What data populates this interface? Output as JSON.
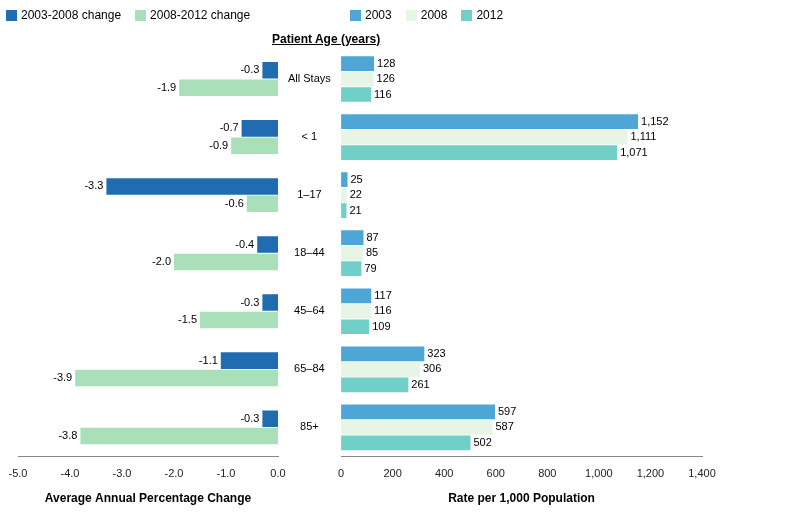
{
  "chart_data": [
    {
      "type": "bar",
      "orientation": "horizontal",
      "ylabel": "Patient Age (years)",
      "xlabel": "Average Annual Percentage Change",
      "categories": [
        "All Stays",
        "< 1",
        "1–17",
        "18–44",
        "45–64",
        "65–84",
        "85+"
      ],
      "series": [
        {
          "name": "2003-2008 change",
          "color": "#1f6cb0",
          "values": [
            -0.3,
            -0.7,
            -3.3,
            -0.4,
            -0.3,
            -1.1,
            -0.3
          ],
          "value_labels": [
            "-0.3",
            "-0.7",
            "-3.3",
            "-0.4",
            "-0.3",
            "-1.1",
            "-0.3"
          ]
        },
        {
          "name": "2008-2012 change",
          "color": "#a9dfb9",
          "values": [
            -1.9,
            -0.9,
            -0.6,
            -2.0,
            -1.5,
            -3.9,
            -3.8
          ],
          "value_labels": [
            "-1.9",
            "-0.9",
            "-0.6",
            "-2.0",
            "-1.5",
            "-3.9",
            "-3.8"
          ]
        }
      ],
      "xlim": [
        -5,
        0
      ],
      "xticks": [
        {
          "value": -5,
          "label": "-5.0"
        },
        {
          "value": -4,
          "label": "-4.0"
        },
        {
          "value": -3,
          "label": "-3.0"
        },
        {
          "value": -2,
          "label": "-2.0"
        },
        {
          "value": -1,
          "label": "-1.0"
        },
        {
          "value": 0,
          "label": "0.0"
        }
      ],
      "grid": false,
      "legend": "top left",
      "data_labels": true
    },
    {
      "type": "bar",
      "orientation": "horizontal",
      "xlabel": "Rate per 1,000 Population",
      "categories": [
        "All Stays",
        "< 1",
        "1–17",
        "18–44",
        "45–64",
        "65–84",
        "85+"
      ],
      "series": [
        {
          "name": "2003",
          "color": "#4da6d6",
          "values": [
            128,
            1152,
            25,
            87,
            117,
            323,
            597
          ],
          "value_labels": [
            "128",
            "1,152",
            "25",
            "87",
            "117",
            "323",
            "597"
          ]
        },
        {
          "name": "2008",
          "color": "#e6f5e6",
          "values": [
            126,
            1111,
            22,
            85,
            116,
            306,
            587
          ],
          "value_labels": [
            "126",
            "1,111",
            "22",
            "85",
            "116",
            "306",
            "587"
          ]
        },
        {
          "name": "2012",
          "color": "#70cfc6",
          "values": [
            116,
            1071,
            21,
            79,
            109,
            261,
            502
          ],
          "value_labels": [
            "116",
            "1,071",
            "21",
            "79",
            "109",
            "261",
            "502"
          ]
        }
      ],
      "xlim": [
        0,
        1400
      ],
      "xticks": [
        0,
        200,
        400,
        600,
        800,
        {
          "value": 1000,
          "label": "1,000"
        },
        {
          "value": 1200,
          "label": "1,200"
        },
        {
          "value": 1400,
          "label": "1,400"
        }
      ],
      "grid": false,
      "legend": "top left",
      "data_labels": true
    }
  ]
}
